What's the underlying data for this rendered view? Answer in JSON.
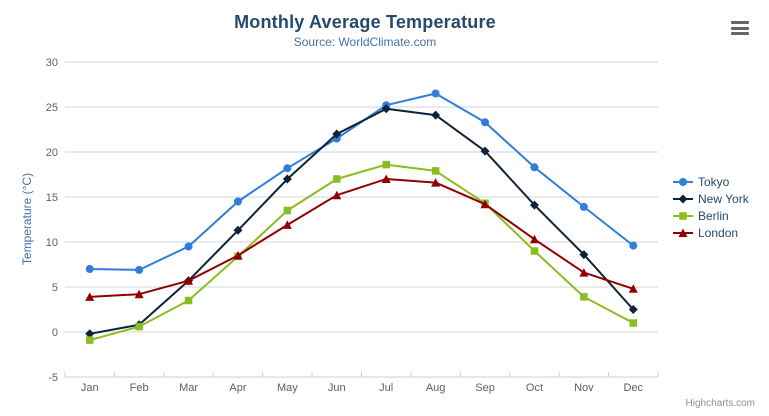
{
  "chart_data": {
    "type": "line",
    "title": "Monthly Average Temperature",
    "subtitle": "Source: WorldClimate.com",
    "categories": [
      "Jan",
      "Feb",
      "Mar",
      "Apr",
      "May",
      "Jun",
      "Jul",
      "Aug",
      "Sep",
      "Oct",
      "Nov",
      "Dec"
    ],
    "xlabel": "",
    "ylabel": "Temperature (°C)",
    "ylim": [
      -5,
      30
    ],
    "ytick_step": 5,
    "grid": true,
    "legend_position": "right",
    "series": [
      {
        "name": "Tokyo",
        "color": "#2f7ed8",
        "marker": "circle",
        "values": [
          7.0,
          6.9,
          9.5,
          14.5,
          18.2,
          21.5,
          25.2,
          26.5,
          23.3,
          18.3,
          13.9,
          9.6
        ]
      },
      {
        "name": "New York",
        "color": "#0d233a",
        "marker": "diamond",
        "values": [
          -0.2,
          0.8,
          5.7,
          11.3,
          17.0,
          22.0,
          24.8,
          24.1,
          20.1,
          14.1,
          8.6,
          2.5
        ]
      },
      {
        "name": "Berlin",
        "color": "#8bbc21",
        "marker": "square",
        "values": [
          -0.9,
          0.6,
          3.5,
          8.4,
          13.5,
          17.0,
          18.6,
          17.9,
          14.3,
          9.0,
          3.9,
          1.0
        ]
      },
      {
        "name": "London",
        "color": "#910000",
        "marker": "triangle",
        "values": [
          3.9,
          4.2,
          5.7,
          8.5,
          11.9,
          15.2,
          17.0,
          16.6,
          14.2,
          10.3,
          6.6,
          4.8
        ]
      }
    ]
  },
  "colors": {
    "title": "#274b6d",
    "subtitle": "#4572A7",
    "axis_title": "#4572A7",
    "axis_labels": "#606060",
    "grid_line": "#D4D4D4",
    "axis_line": "#C0D0E0",
    "legend_text": "#274b6d",
    "credits": "#909090",
    "menu_icon": "#666666",
    "background": "#FFFFFF"
  },
  "credits": {
    "label": "Highcharts.com"
  }
}
